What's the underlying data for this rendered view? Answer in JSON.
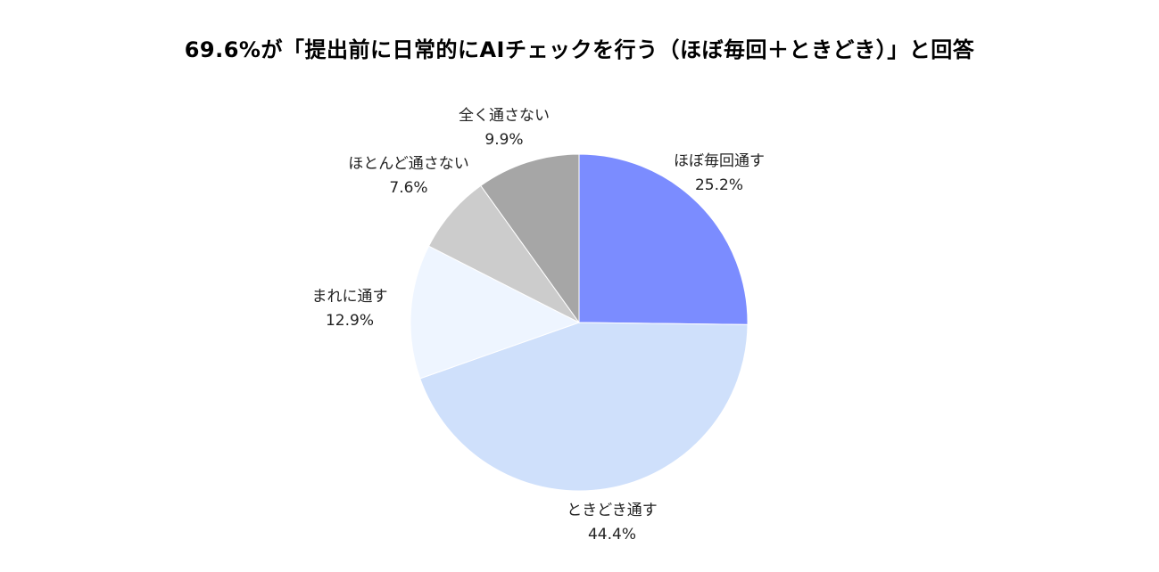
{
  "chart_data": {
    "type": "pie",
    "title": "69.6%が「提出前に日常的にAIチェックを行う（ほぼ毎回＋ときどき）」と回答",
    "slices": [
      {
        "label": "ほぼ毎回通す",
        "value": 25.2,
        "value_label": "25.2%",
        "color": "#7B8CFF"
      },
      {
        "label": "ときどき通す",
        "value": 44.4,
        "value_label": "44.4%",
        "color": "#CFE0FB"
      },
      {
        "label": "まれに通す",
        "value": 12.9,
        "value_label": "12.9%",
        "color": "#EEF5FF"
      },
      {
        "label": "ほとんど通さない",
        "value": 7.6,
        "value_label": "7.6%",
        "color": "#CCCCCC"
      },
      {
        "label": "全く通さない",
        "value": 9.9,
        "value_label": "9.9%",
        "color": "#A6A6A6"
      }
    ],
    "start_angle": "12 o'clock",
    "direction": "clockwise",
    "legend": "none"
  }
}
